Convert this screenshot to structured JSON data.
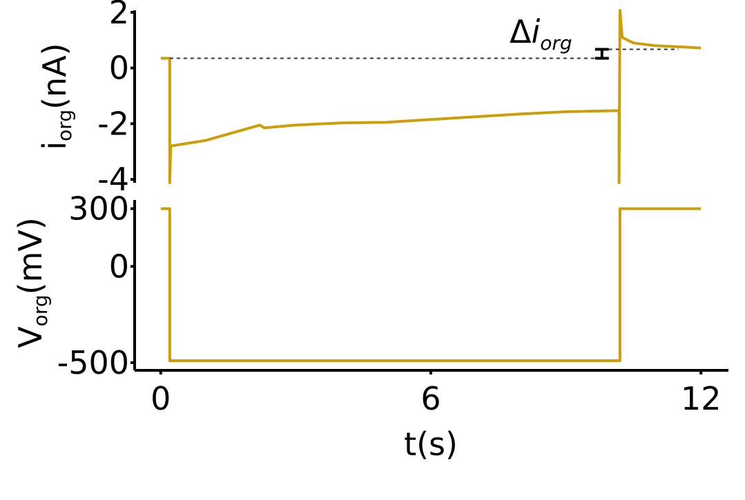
{
  "chart_data": [
    {
      "type": "line",
      "ylabel": {
        "symbol": "i",
        "subscript": "org",
        "unit": "(nA)"
      },
      "xlim": [
        -0.58,
        12.61
      ],
      "ylim": [
        -4.12,
        2.07
      ],
      "yticks": [
        2,
        0,
        -2,
        -4
      ],
      "series": [
        {
          "color": "#cc9e0a",
          "x": [
            0,
            0.2,
            0.2,
            0.22,
            1,
            2.2,
            2.3,
            3,
            4,
            5,
            6,
            7,
            8,
            9,
            10.18,
            10.18,
            10.2,
            10.25,
            10.5,
            11,
            12
          ],
          "values": [
            0.35,
            0.35,
            -4.12,
            -2.8,
            -2.6,
            -2.05,
            -2.15,
            -2.05,
            -1.97,
            -1.95,
            -1.85,
            -1.75,
            -1.65,
            -1.57,
            -1.53,
            -4.12,
            2.07,
            1.1,
            0.9,
            0.8,
            0.72
          ]
        }
      ],
      "annotation": {
        "delta": "Δ",
        "symbol": "i",
        "subscript": "org",
        "from": 0.35,
        "to": 0.67
      }
    },
    {
      "type": "line",
      "ylabel": {
        "symbol": "V",
        "subscript": "org",
        "unit": "(mV)"
      },
      "xlabel": "t(s)",
      "xlim": [
        -0.58,
        12.61
      ],
      "xticks": [
        0,
        6,
        12
      ],
      "ylim": [
        -540,
        345
      ],
      "yticks": [
        300,
        0,
        -500
      ],
      "series": [
        {
          "color": "#cc9e0a",
          "x": [
            0,
            0.2,
            0.2,
            10.2,
            10.2,
            12
          ],
          "values": [
            300,
            300,
            -490,
            -490,
            300,
            300
          ]
        }
      ]
    }
  ]
}
